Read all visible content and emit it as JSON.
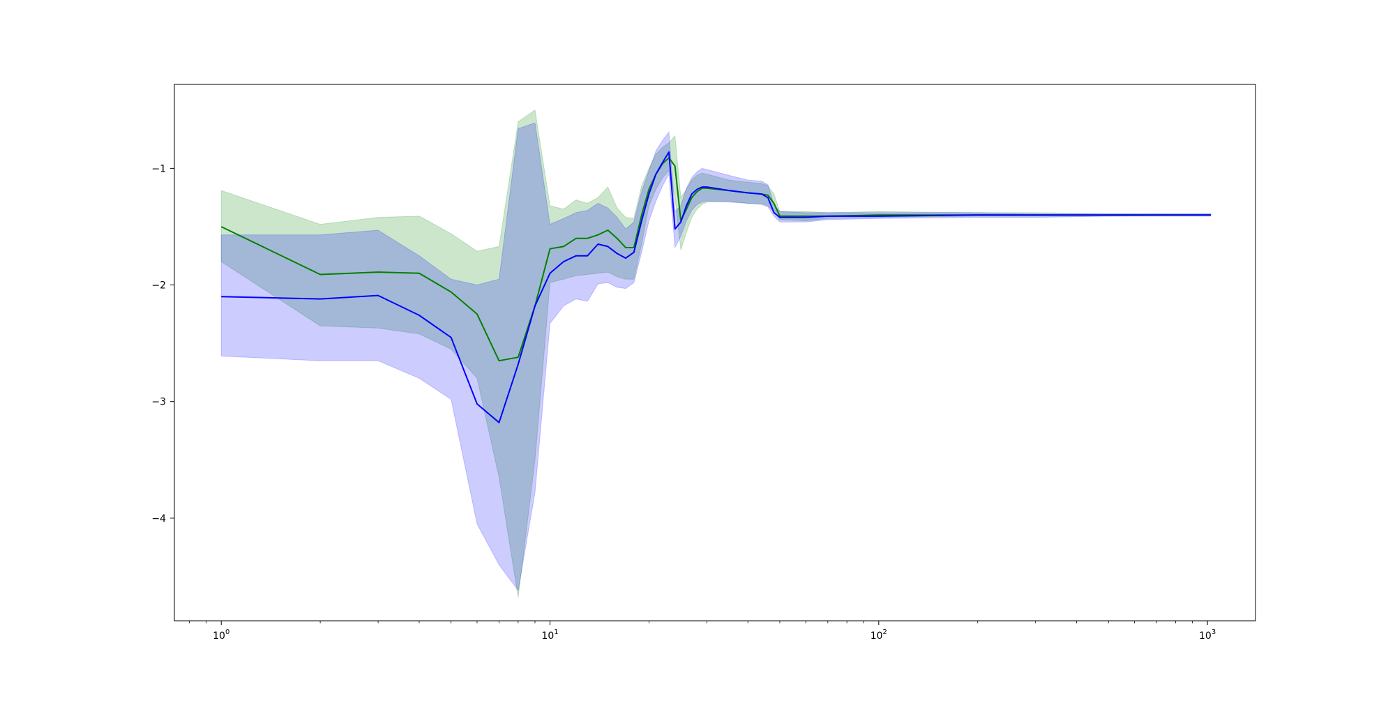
{
  "chart_data": {
    "type": "line",
    "xscale": "log",
    "xlim": [
      0.72,
      1400
    ],
    "ylim": [
      -4.88,
      -0.28
    ],
    "grid": false,
    "x_ticks": [
      {
        "value": 1,
        "base": "10",
        "exp": "0"
      },
      {
        "value": 10,
        "base": "10",
        "exp": "1"
      },
      {
        "value": 100,
        "base": "10",
        "exp": "2"
      },
      {
        "value": 1000,
        "base": "10",
        "exp": "3"
      }
    ],
    "y_ticks": [
      {
        "value": -1,
        "label": "−1"
      },
      {
        "value": -2,
        "label": "−2"
      },
      {
        "value": -3,
        "label": "−3"
      },
      {
        "value": -4,
        "label": "−4"
      }
    ],
    "colors": {
      "green_line": "#008000",
      "green_band": "#008000",
      "blue_line": "#0000ff",
      "blue_band": "#0000ff"
    },
    "series": [
      {
        "color": "#008000",
        "x": [
          1,
          2,
          3,
          4,
          5,
          6,
          7,
          8,
          9,
          10,
          11,
          12,
          13,
          14,
          15,
          16,
          17,
          18,
          19,
          20,
          21,
          22,
          23,
          24,
          25,
          26,
          27,
          28,
          29,
          30,
          35,
          40,
          44,
          46,
          48,
          50,
          60,
          70,
          100,
          200,
          300,
          500,
          1024
        ],
        "y": [
          -1.5,
          -1.91,
          -1.89,
          -1.9,
          -2.06,
          -2.25,
          -2.65,
          -2.62,
          -2.18,
          -1.69,
          -1.67,
          -1.6,
          -1.6,
          -1.57,
          -1.53,
          -1.6,
          -1.68,
          -1.68,
          -1.4,
          -1.18,
          -1.05,
          -0.96,
          -0.91,
          -0.98,
          -1.45,
          -1.35,
          -1.25,
          -1.2,
          -1.17,
          -1.17,
          -1.19,
          -1.21,
          -1.22,
          -1.23,
          -1.3,
          -1.41,
          -1.41,
          -1.41,
          -1.4,
          -1.4,
          -1.4,
          -1.4,
          -1.4
        ],
        "lower": [
          -1.8,
          -2.35,
          -2.37,
          -2.42,
          -2.55,
          -2.8,
          -3.65,
          -4.68,
          -3.5,
          -1.98,
          -1.95,
          -1.92,
          -1.91,
          -1.9,
          -1.89,
          -1.93,
          -1.95,
          -1.95,
          -1.65,
          -1.32,
          -1.18,
          -1.08,
          -1.02,
          -1.25,
          -1.7,
          -1.55,
          -1.42,
          -1.35,
          -1.31,
          -1.29,
          -1.28,
          -1.3,
          -1.3,
          -1.32,
          -1.37,
          -1.44,
          -1.45,
          -1.43,
          -1.42,
          -1.41,
          -1.41,
          -1.41,
          -1.4
        ],
        "upper": [
          -1.19,
          -1.48,
          -1.42,
          -1.41,
          -1.56,
          -1.71,
          -1.67,
          -0.6,
          -0.5,
          -1.32,
          -1.35,
          -1.27,
          -1.3,
          -1.25,
          -1.16,
          -1.34,
          -1.42,
          -1.43,
          -1.15,
          -1.0,
          -0.88,
          -0.82,
          -0.78,
          -0.72,
          -1.25,
          -1.18,
          -1.1,
          -1.06,
          -1.04,
          -1.05,
          -1.1,
          -1.12,
          -1.13,
          -1.15,
          -1.22,
          -1.37,
          -1.37,
          -1.38,
          -1.37,
          -1.38,
          -1.38,
          -1.39,
          -1.39
        ]
      },
      {
        "color": "#0000ff",
        "x": [
          1,
          2,
          3,
          4,
          5,
          6,
          7,
          8,
          9,
          10,
          11,
          12,
          13,
          14,
          15,
          16,
          17,
          18,
          19,
          20,
          21,
          22,
          23,
          24,
          25,
          26,
          27,
          28,
          29,
          30,
          35,
          40,
          44,
          46,
          48,
          50,
          60,
          70,
          100,
          200,
          300,
          500,
          1024
        ],
        "y": [
          -2.1,
          -2.12,
          -2.09,
          -2.26,
          -2.45,
          -3.02,
          -3.18,
          -2.68,
          -2.18,
          -1.9,
          -1.8,
          -1.75,
          -1.75,
          -1.65,
          -1.67,
          -1.73,
          -1.77,
          -1.72,
          -1.45,
          -1.22,
          -1.05,
          -0.95,
          -0.86,
          -1.52,
          -1.46,
          -1.32,
          -1.22,
          -1.18,
          -1.16,
          -1.16,
          -1.19,
          -1.21,
          -1.22,
          -1.25,
          -1.38,
          -1.42,
          -1.42,
          -1.41,
          -1.41,
          -1.4,
          -1.4,
          -1.4,
          -1.4
        ],
        "lower": [
          -2.61,
          -2.65,
          -2.65,
          -2.8,
          -2.98,
          -4.05,
          -4.4,
          -4.62,
          -3.78,
          -2.33,
          -2.18,
          -2.12,
          -2.14,
          -1.99,
          -1.98,
          -2.02,
          -2.03,
          -1.98,
          -1.72,
          -1.45,
          -1.28,
          -1.15,
          -1.05,
          -1.68,
          -1.58,
          -1.45,
          -1.36,
          -1.31,
          -1.29,
          -1.28,
          -1.29,
          -1.3,
          -1.31,
          -1.33,
          -1.41,
          -1.46,
          -1.46,
          -1.44,
          -1.43,
          -1.42,
          -1.42,
          -1.41,
          -1.41
        ],
        "upper": [
          -1.57,
          -1.57,
          -1.53,
          -1.75,
          -1.95,
          -2.0,
          -1.95,
          -0.66,
          -0.61,
          -1.48,
          -1.43,
          -1.38,
          -1.36,
          -1.3,
          -1.34,
          -1.42,
          -1.52,
          -1.46,
          -1.2,
          -1.02,
          -0.85,
          -0.76,
          -0.69,
          -1.37,
          -1.32,
          -1.17,
          -1.08,
          -1.03,
          -1.0,
          -1.01,
          -1.06,
          -1.1,
          -1.11,
          -1.14,
          -1.31,
          -1.37,
          -1.38,
          -1.38,
          -1.38,
          -1.38,
          -1.39,
          -1.39,
          -1.39
        ]
      }
    ]
  }
}
